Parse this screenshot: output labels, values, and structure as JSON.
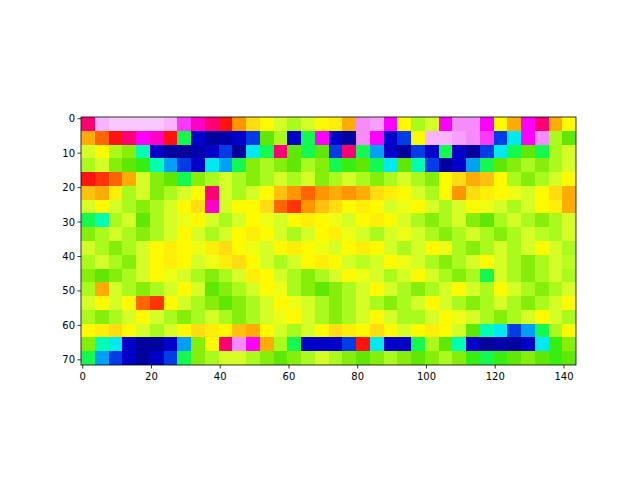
{
  "chart_data": {
    "type": "heatmap",
    "xlim": [
      -0.5,
      143.5
    ],
    "ylim": [
      71.5,
      -0.5
    ],
    "xticks": [
      0,
      20,
      40,
      60,
      80,
      100,
      120,
      140
    ],
    "yticks": [
      0,
      10,
      20,
      30,
      40,
      50,
      60,
      70
    ],
    "vlim": [
      0,
      1
    ],
    "x_edges": [
      -0.5,
      3.5,
      7.5,
      11.5,
      15.5,
      19.5,
      23.5,
      27.5,
      31.5,
      35.5,
      39.5,
      43.5,
      47.5,
      51.5,
      55.5,
      59.5,
      63.5,
      67.5,
      71.5,
      75.5,
      79.5,
      83.5,
      87.5,
      91.5,
      95.5,
      99.5,
      103.5,
      107.5,
      111.5,
      115.5,
      119.5,
      123.5,
      127.5,
      131.5,
      135.5,
      139.5,
      143.5
    ],
    "y_edges": [
      -0.5,
      3.5,
      7.5,
      11.5,
      15.5,
      19.5,
      23.5,
      27.5,
      31.5,
      35.5,
      39.5,
      43.5,
      47.5,
      51.5,
      55.5,
      59.5,
      63.5,
      67.5,
      71.5
    ],
    "cells": [
      [
        0.85,
        0.97,
        0.98,
        0.98,
        0.98,
        0.98,
        0.97,
        0.92,
        0.88,
        0.85,
        0.8,
        0.72,
        0.65,
        0.6,
        0.55,
        0.5,
        0.55,
        0.6,
        0.62,
        0.7,
        0.95,
        0.96,
        0.9,
        0.6,
        0.5,
        0.55,
        0.9,
        0.95,
        0.95,
        0.9,
        0.6,
        0.7,
        0.9,
        0.85,
        0.7,
        0.6
      ],
      [
        0.7,
        0.75,
        0.8,
        0.85,
        0.9,
        0.88,
        0.8,
        0.3,
        0.05,
        0.02,
        0.03,
        0.05,
        0.1,
        0.4,
        0.5,
        0.05,
        0.3,
        0.9,
        0.05,
        0.02,
        0.95,
        0.9,
        0.05,
        0.1,
        0.6,
        0.97,
        0.97,
        0.96,
        0.95,
        0.92,
        0.1,
        0.2,
        0.9,
        0.95,
        0.5,
        0.4
      ],
      [
        0.55,
        0.6,
        0.5,
        0.45,
        0.25,
        0.05,
        0.02,
        0.02,
        0.03,
        0.05,
        0.1,
        0.02,
        0.2,
        0.3,
        0.85,
        0.4,
        0.3,
        0.4,
        0.1,
        0.85,
        0.3,
        0.15,
        0.05,
        0.02,
        0.1,
        0.05,
        0.3,
        0.05,
        0.02,
        0.1,
        0.2,
        0.3,
        0.4,
        0.3,
        0.5,
        0.55
      ],
      [
        0.5,
        0.55,
        0.45,
        0.4,
        0.35,
        0.25,
        0.15,
        0.1,
        0.05,
        0.2,
        0.15,
        0.3,
        0.45,
        0.5,
        0.45,
        0.4,
        0.5,
        0.45,
        0.3,
        0.35,
        0.4,
        0.3,
        0.2,
        0.4,
        0.25,
        0.1,
        0.02,
        0.05,
        0.15,
        0.3,
        0.4,
        0.45,
        0.5,
        0.45,
        0.5,
        0.55
      ],
      [
        0.8,
        0.78,
        0.75,
        0.7,
        0.55,
        0.45,
        0.4,
        0.3,
        0.45,
        0.5,
        0.55,
        0.5,
        0.45,
        0.5,
        0.55,
        0.5,
        0.55,
        0.45,
        0.5,
        0.55,
        0.5,
        0.45,
        0.5,
        0.55,
        0.5,
        0.45,
        0.6,
        0.65,
        0.7,
        0.68,
        0.6,
        0.5,
        0.45,
        0.5,
        0.55,
        0.6
      ],
      [
        0.68,
        0.7,
        0.62,
        0.5,
        0.55,
        0.45,
        0.5,
        0.55,
        0.6,
        0.85,
        0.55,
        0.5,
        0.55,
        0.6,
        0.68,
        0.72,
        0.75,
        0.72,
        0.7,
        0.72,
        0.7,
        0.65,
        0.62,
        0.6,
        0.55,
        0.5,
        0.6,
        0.72,
        0.65,
        0.62,
        0.6,
        0.58,
        0.55,
        0.6,
        0.65,
        0.7
      ],
      [
        0.55,
        0.6,
        0.55,
        0.5,
        0.45,
        0.5,
        0.55,
        0.6,
        0.65,
        0.88,
        0.55,
        0.6,
        0.6,
        0.65,
        0.75,
        0.78,
        0.72,
        0.68,
        0.65,
        0.6,
        0.62,
        0.6,
        0.55,
        0.58,
        0.6,
        0.55,
        0.5,
        0.55,
        0.6,
        0.58,
        0.55,
        0.5,
        0.55,
        0.6,
        0.62,
        0.7
      ],
      [
        0.3,
        0.25,
        0.5,
        0.55,
        0.4,
        0.5,
        0.55,
        0.58,
        0.6,
        0.55,
        0.5,
        0.55,
        0.6,
        0.58,
        0.55,
        0.6,
        0.62,
        0.6,
        0.58,
        0.55,
        0.6,
        0.62,
        0.6,
        0.55,
        0.5,
        0.45,
        0.5,
        0.55,
        0.45,
        0.4,
        0.5,
        0.55,
        0.5,
        0.45,
        0.5,
        0.55
      ],
      [
        0.45,
        0.5,
        0.55,
        0.5,
        0.45,
        0.5,
        0.55,
        0.6,
        0.55,
        0.5,
        0.55,
        0.6,
        0.62,
        0.6,
        0.55,
        0.5,
        0.55,
        0.6,
        0.62,
        0.58,
        0.55,
        0.5,
        0.55,
        0.58,
        0.55,
        0.5,
        0.45,
        0.5,
        0.55,
        0.5,
        0.45,
        0.5,
        0.55,
        0.52,
        0.5,
        0.55
      ],
      [
        0.55,
        0.5,
        0.45,
        0.5,
        0.55,
        0.6,
        0.62,
        0.6,
        0.58,
        0.62,
        0.65,
        0.6,
        0.58,
        0.55,
        0.6,
        0.62,
        0.6,
        0.58,
        0.55,
        0.6,
        0.62,
        0.6,
        0.55,
        0.5,
        0.55,
        0.6,
        0.58,
        0.5,
        0.45,
        0.5,
        0.55,
        0.5,
        0.55,
        0.6,
        0.55,
        0.5
      ],
      [
        0.5,
        0.55,
        0.5,
        0.45,
        0.55,
        0.6,
        0.62,
        0.6,
        0.55,
        0.58,
        0.62,
        0.65,
        0.6,
        0.55,
        0.5,
        0.55,
        0.6,
        0.62,
        0.6,
        0.55,
        0.52,
        0.55,
        0.6,
        0.58,
        0.55,
        0.5,
        0.45,
        0.5,
        0.55,
        0.6,
        0.55,
        0.5,
        0.45,
        0.5,
        0.55,
        0.52
      ],
      [
        0.45,
        0.4,
        0.45,
        0.5,
        0.55,
        0.6,
        0.58,
        0.55,
        0.5,
        0.45,
        0.5,
        0.55,
        0.62,
        0.6,
        0.55,
        0.5,
        0.45,
        0.5,
        0.55,
        0.6,
        0.58,
        0.55,
        0.5,
        0.55,
        0.6,
        0.55,
        0.5,
        0.45,
        0.5,
        0.3,
        0.55,
        0.5,
        0.45,
        0.5,
        0.55,
        0.5
      ],
      [
        0.5,
        0.7,
        0.55,
        0.5,
        0.45,
        0.5,
        0.55,
        0.6,
        0.55,
        0.4,
        0.45,
        0.5,
        0.55,
        0.6,
        0.58,
        0.5,
        0.45,
        0.4,
        0.45,
        0.5,
        0.55,
        0.6,
        0.55,
        0.5,
        0.45,
        0.5,
        0.55,
        0.6,
        0.55,
        0.5,
        0.6,
        0.55,
        0.5,
        0.45,
        0.5,
        0.55
      ],
      [
        0.55,
        0.6,
        0.55,
        0.6,
        0.75,
        0.78,
        0.6,
        0.55,
        0.5,
        0.45,
        0.4,
        0.45,
        0.5,
        0.55,
        0.6,
        0.58,
        0.55,
        0.5,
        0.45,
        0.5,
        0.55,
        0.5,
        0.45,
        0.5,
        0.55,
        0.6,
        0.55,
        0.5,
        0.45,
        0.5,
        0.55,
        0.5,
        0.45,
        0.5,
        0.55,
        0.6
      ],
      [
        0.5,
        0.45,
        0.5,
        0.55,
        0.6,
        0.55,
        0.5,
        0.45,
        0.5,
        0.55,
        0.5,
        0.45,
        0.5,
        0.55,
        0.58,
        0.6,
        0.55,
        0.5,
        0.45,
        0.5,
        0.55,
        0.6,
        0.55,
        0.5,
        0.5,
        0.55,
        0.6,
        0.58,
        0.55,
        0.5,
        0.45,
        0.5,
        0.55,
        0.6,
        0.55,
        0.5
      ],
      [
        0.6,
        0.62,
        0.65,
        0.6,
        0.55,
        0.5,
        0.55,
        0.6,
        0.65,
        0.62,
        0.6,
        0.68,
        0.7,
        0.6,
        0.55,
        0.5,
        0.55,
        0.6,
        0.65,
        0.62,
        0.6,
        0.65,
        0.6,
        0.55,
        0.6,
        0.62,
        0.6,
        0.55,
        0.4,
        0.25,
        0.2,
        0.1,
        0.15,
        0.3,
        0.5,
        0.6
      ],
      [
        0.45,
        0.25,
        0.2,
        0.05,
        0.02,
        0.02,
        0.05,
        0.15,
        0.45,
        0.6,
        0.85,
        0.95,
        0.9,
        0.7,
        0.5,
        0.3,
        0.05,
        0.05,
        0.05,
        0.1,
        0.8,
        0.2,
        0.05,
        0.05,
        0.3,
        0.5,
        0.4,
        0.25,
        0.05,
        0.02,
        0.03,
        0.02,
        0.05,
        0.2,
        0.35,
        0.45
      ],
      [
        0.3,
        0.15,
        0.1,
        0.05,
        0.02,
        0.05,
        0.1,
        0.3,
        0.45,
        0.5,
        0.55,
        0.55,
        0.5,
        0.45,
        0.4,
        0.45,
        0.5,
        0.55,
        0.5,
        0.45,
        0.4,
        0.45,
        0.5,
        0.45,
        0.4,
        0.45,
        0.5,
        0.45,
        0.35,
        0.3,
        0.35,
        0.4,
        0.45,
        0.4,
        0.35,
        0.4
      ]
    ]
  }
}
